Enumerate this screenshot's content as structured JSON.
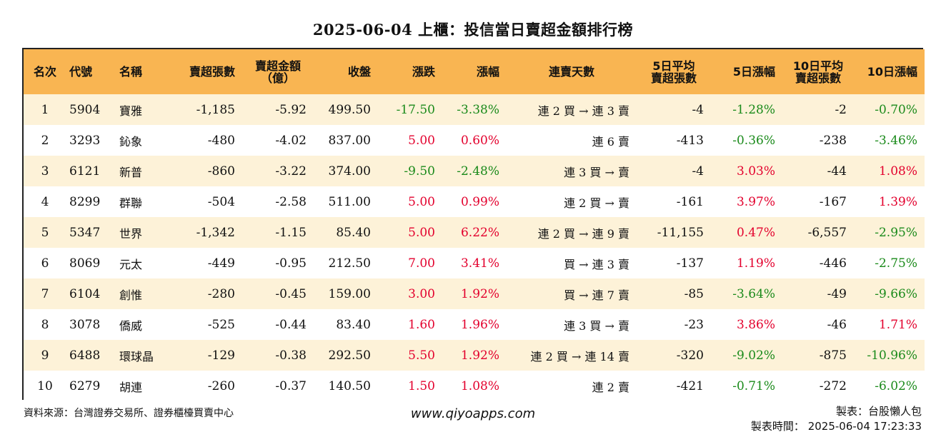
{
  "title": "2025-06-04 上櫃：投信當日賣超金額排行榜",
  "headers": {
    "rank": "名次",
    "code": "代號",
    "name": "名稱",
    "sell_shares": "賣超張數",
    "sell_amount_1": "賣超金額",
    "sell_amount_2": "（億）",
    "close": "收盤",
    "change": "漲跌",
    "pct": "漲幅",
    "streak": "連賣天數",
    "avg5_1": "5日平均",
    "avg5_2": "賣超張數",
    "pct5": "5日漲幅",
    "avg10_1": "10日平均",
    "avg10_2": "賣超張數",
    "pct10": "10日漲幅"
  },
  "rows": [
    {
      "rank": "1",
      "code": "5904",
      "name": "寶雅",
      "sell_shares": "-1,185",
      "sell_amount": "-5.92",
      "close": "499.50",
      "change": "-17.50",
      "pct": "-3.38%",
      "streak": "連 2 買 → 連 3 賣",
      "avg5": "-4",
      "pct5": "-1.28%",
      "avg10": "-2",
      "pct10": "-0.70%"
    },
    {
      "rank": "2",
      "code": "3293",
      "name": "鈊象",
      "sell_shares": "-480",
      "sell_amount": "-4.02",
      "close": "837.00",
      "change": "5.00",
      "pct": "0.60%",
      "streak": "連 6 賣",
      "avg5": "-413",
      "pct5": "-0.36%",
      "avg10": "-238",
      "pct10": "-3.46%"
    },
    {
      "rank": "3",
      "code": "6121",
      "name": "新普",
      "sell_shares": "-860",
      "sell_amount": "-3.22",
      "close": "374.00",
      "change": "-9.50",
      "pct": "-2.48%",
      "streak": "連 3 買 → 賣",
      "avg5": "-4",
      "pct5": "3.03%",
      "avg10": "-44",
      "pct10": "1.08%"
    },
    {
      "rank": "4",
      "code": "8299",
      "name": "群聯",
      "sell_shares": "-504",
      "sell_amount": "-2.58",
      "close": "511.00",
      "change": "5.00",
      "pct": "0.99%",
      "streak": "連 2 買 → 賣",
      "avg5": "-161",
      "pct5": "3.97%",
      "avg10": "-167",
      "pct10": "1.39%"
    },
    {
      "rank": "5",
      "code": "5347",
      "name": "世界",
      "sell_shares": "-1,342",
      "sell_amount": "-1.15",
      "close": "85.40",
      "change": "5.00",
      "pct": "6.22%",
      "streak": "連 2 買 → 連 9 賣",
      "avg5": "-11,155",
      "pct5": "0.47%",
      "avg10": "-6,557",
      "pct10": "-2.95%"
    },
    {
      "rank": "6",
      "code": "8069",
      "name": "元太",
      "sell_shares": "-449",
      "sell_amount": "-0.95",
      "close": "212.50",
      "change": "7.00",
      "pct": "3.41%",
      "streak": "買 → 連 3 賣",
      "avg5": "-137",
      "pct5": "1.19%",
      "avg10": "-446",
      "pct10": "-2.75%"
    },
    {
      "rank": "7",
      "code": "6104",
      "name": "創惟",
      "sell_shares": "-280",
      "sell_amount": "-0.45",
      "close": "159.00",
      "change": "3.00",
      "pct": "1.92%",
      "streak": "買 → 連 7 賣",
      "avg5": "-85",
      "pct5": "-3.64%",
      "avg10": "-49",
      "pct10": "-9.66%"
    },
    {
      "rank": "8",
      "code": "3078",
      "name": "僑威",
      "sell_shares": "-525",
      "sell_amount": "-0.44",
      "close": "83.40",
      "change": "1.60",
      "pct": "1.96%",
      "streak": "連 3 買 → 賣",
      "avg5": "-23",
      "pct5": "3.86%",
      "avg10": "-46",
      "pct10": "1.71%"
    },
    {
      "rank": "9",
      "code": "6488",
      "name": "環球晶",
      "sell_shares": "-129",
      "sell_amount": "-0.38",
      "close": "292.50",
      "change": "5.50",
      "pct": "1.92%",
      "streak": "連 2 買 → 連 14 賣",
      "avg5": "-320",
      "pct5": "-9.02%",
      "avg10": "-875",
      "pct10": "-10.96%"
    },
    {
      "rank": "10",
      "code": "6279",
      "name": "胡連",
      "sell_shares": "-260",
      "sell_amount": "-0.37",
      "close": "140.50",
      "change": "1.50",
      "pct": "1.08%",
      "streak": "連 2 賣",
      "avg5": "-421",
      "pct5": "-0.71%",
      "avg10": "-272",
      "pct10": "-6.02%"
    }
  ],
  "footer": {
    "source": "資料來源：台灣證券交易所、證券櫃檯買賣中心",
    "website": "www.qiyoapps.com",
    "author": "製表：台股懶人包",
    "timestamp": "製表時間： 2025-06-04 17:23:33"
  },
  "colors": {
    "header_bg": "#f9b552",
    "odd_row_bg": "#fdf2d8",
    "positive": "#e3002d",
    "negative": "#1a8a1a"
  }
}
